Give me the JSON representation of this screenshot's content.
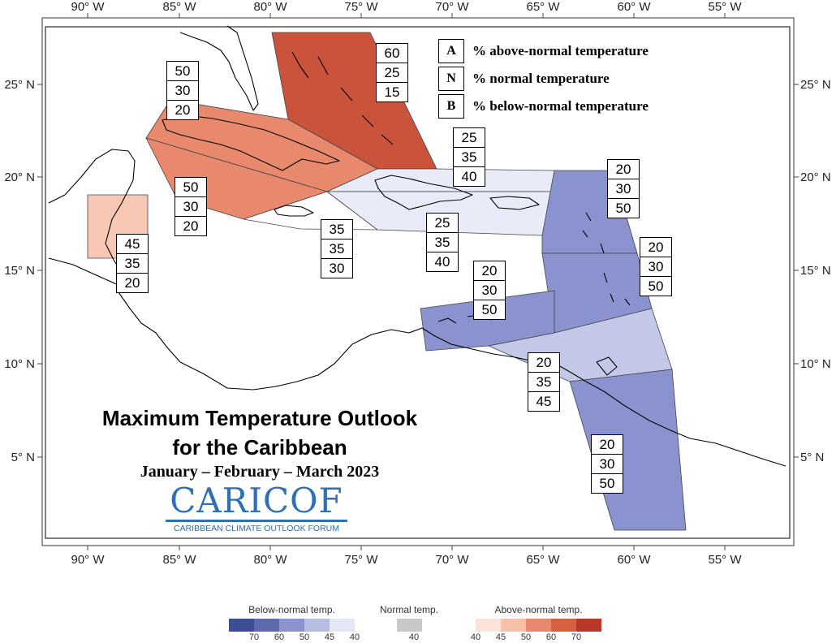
{
  "map": {
    "lon_labels": [
      "90° W",
      "85° W",
      "80° W",
      "75° W",
      "70° W",
      "65° W",
      "60° W",
      "55° W"
    ],
    "lat_labels": [
      "25° N",
      "20° N",
      "15° N",
      "10° N",
      "5° N"
    ],
    "title_line1": "Maximum Temperature Outlook",
    "title_line2": "for the Caribbean",
    "season": "January – February – March 2023",
    "logo_name": "CARICOF",
    "logo_subtitle": "CARIBBEAN CLIMATE OUTLOOK FORUM"
  },
  "key": {
    "a_letter": "A",
    "a_text": "% above-normal temperature",
    "n_letter": "N",
    "n_text": "% normal temperature",
    "b_letter": "B",
    "b_text": "% below-normal temperature"
  },
  "regions": [
    {
      "name": "bahamas",
      "a": "60",
      "n": "25",
      "b": "15",
      "color": "#c9533b"
    },
    {
      "name": "cuba-north",
      "a": "50",
      "n": "30",
      "b": "20",
      "color": "#e8896d"
    },
    {
      "name": "cuba-south",
      "a": "50",
      "n": "30",
      "b": "20",
      "color": "#e8896d"
    },
    {
      "name": "belize",
      "a": "45",
      "n": "35",
      "b": "20",
      "color": "#f8c8b4"
    },
    {
      "name": "jamaica",
      "a": "35",
      "n": "35",
      "b": "30",
      "color": "#ffffff"
    },
    {
      "name": "turks-caicos",
      "a": "25",
      "n": "35",
      "b": "40",
      "color": "#e9ecf8"
    },
    {
      "name": "hispaniola",
      "a": "25",
      "n": "35",
      "b": "40",
      "color": "#e9ecf8"
    },
    {
      "name": "leeward-islands",
      "a": "20",
      "n": "30",
      "b": "50",
      "color": "#8a93cf"
    },
    {
      "name": "windward-islands",
      "a": "20",
      "n": "30",
      "b": "50",
      "color": "#8a93cf"
    },
    {
      "name": "abc-islands",
      "a": "20",
      "n": "30",
      "b": "50",
      "color": "#8a93cf"
    },
    {
      "name": "trinidad",
      "a": "20",
      "n": "35",
      "b": "45",
      "color": "#c3c8e8"
    },
    {
      "name": "guianas",
      "a": "20",
      "n": "30",
      "b": "50",
      "color": "#8a93cf"
    }
  ],
  "scale": {
    "below_title": "Below-normal temp.",
    "normal_title": "Normal temp.",
    "above_title": "Above-normal temp.",
    "below_colors": [
      "#3d4d94",
      "#5d6aad",
      "#8a93cf",
      "#b8bde2",
      "#e4e7f6"
    ],
    "below_ticks": [
      "70",
      "60",
      "50",
      "45",
      "40"
    ],
    "normal_color": "#c8c8c8",
    "normal_tick": "40",
    "above_colors": [
      "#fde3d8",
      "#f8c0a8",
      "#e8896d",
      "#d5613f",
      "#b8392a"
    ],
    "above_ticks": [
      "40",
      "45",
      "50",
      "60",
      "70"
    ]
  }
}
